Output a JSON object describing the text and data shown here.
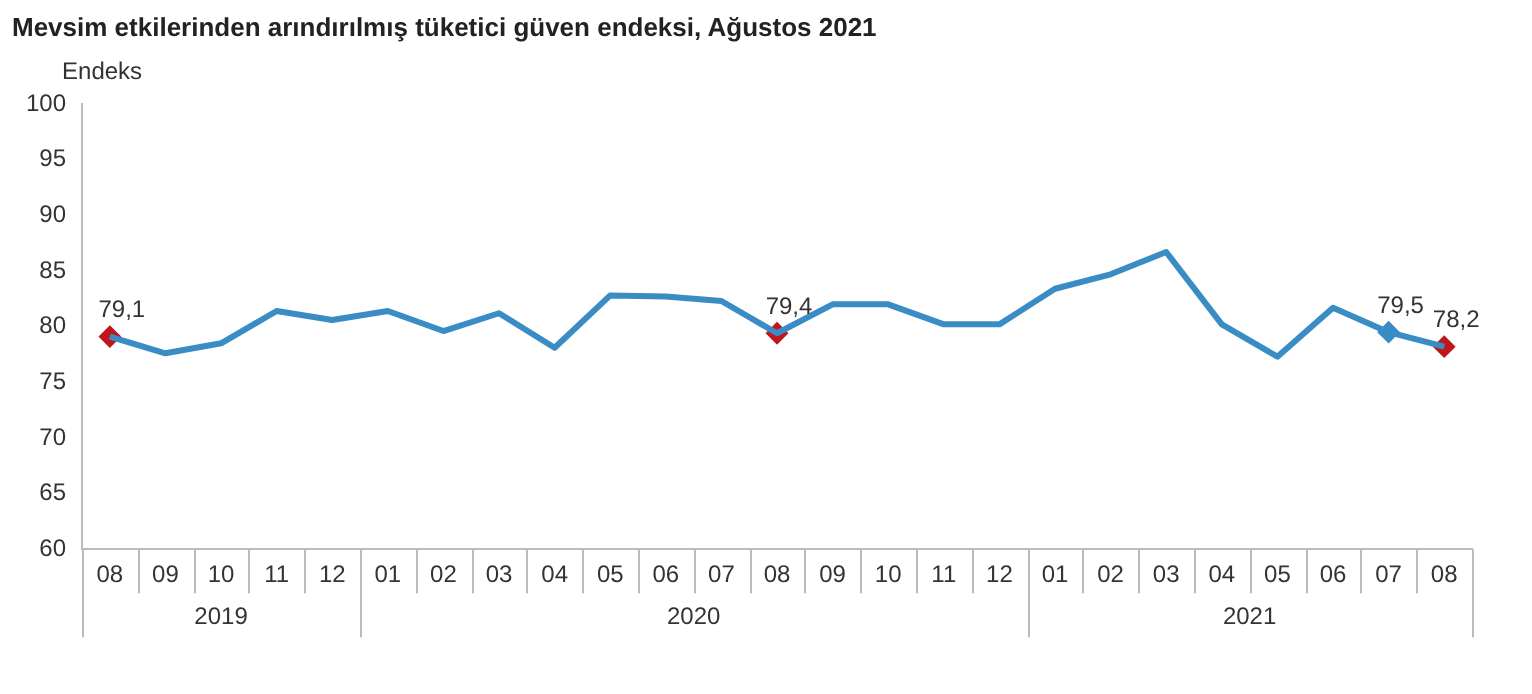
{
  "chart_data": {
    "type": "line",
    "title": "Mevsim etkilerinden arındırılmış tüketici güven endeksi, Ağustos 2021",
    "ylabel": "Endeks",
    "categories": [
      "08",
      "09",
      "10",
      "11",
      "12",
      "01",
      "02",
      "03",
      "04",
      "05",
      "06",
      "07",
      "08",
      "09",
      "10",
      "11",
      "12",
      "01",
      "02",
      "03",
      "04",
      "05",
      "06",
      "07",
      "08"
    ],
    "series": [
      {
        "marker": "none",
        "color": "#3a8cc4",
        "values": [
          79.1,
          77.6,
          78.5,
          81.4,
          80.6,
          81.4,
          79.6,
          81.2,
          78.1,
          82.8,
          82.7,
          82.3,
          79.4,
          82.0,
          82.0,
          80.2,
          80.2,
          83.4,
          84.7,
          86.7,
          80.2,
          77.3,
          81.7,
          79.5,
          78.2
        ]
      },
      {
        "type": "scatter",
        "marker": "diamond",
        "values": [
          79.1,
          null,
          null,
          null,
          null,
          null,
          null,
          null,
          null,
          null,
          null,
          null,
          79.4,
          null,
          null,
          null,
          null,
          null,
          null,
          null,
          null,
          null,
          null,
          79.5,
          78.2
        ],
        "colors": [
          "#c0171c",
          "#c0171c",
          "#c0171c",
          "#c0171c",
          "#c0171c",
          "#c0171c",
          "#c0171c",
          "#c0171c",
          "#c0171c",
          "#c0171c",
          "#c0171c",
          "#c0171c",
          "#c0171c",
          "#c0171c",
          "#c0171c",
          "#c0171c",
          "#c0171c",
          "#c0171c",
          "#c0171c",
          "#c0171c",
          "#c0171c",
          "#c0171c",
          "#c0171c",
          "#3a8cc4",
          "#c0171c"
        ],
        "value_labels": [
          "79,1",
          null,
          null,
          null,
          null,
          null,
          null,
          null,
          null,
          null,
          null,
          null,
          "79,4",
          null,
          null,
          null,
          null,
          null,
          null,
          null,
          null,
          null,
          null,
          "79,5",
          "78,2"
        ]
      }
    ],
    "annotations": [
      "2019",
      "2020",
      "2021"
    ],
    "ylim": [
      60,
      100
    ],
    "yticks": [
      60,
      65,
      70,
      75,
      80,
      85,
      90,
      95,
      100
    ],
    "grid": false,
    "legend": false,
    "line_style": "solid"
  }
}
